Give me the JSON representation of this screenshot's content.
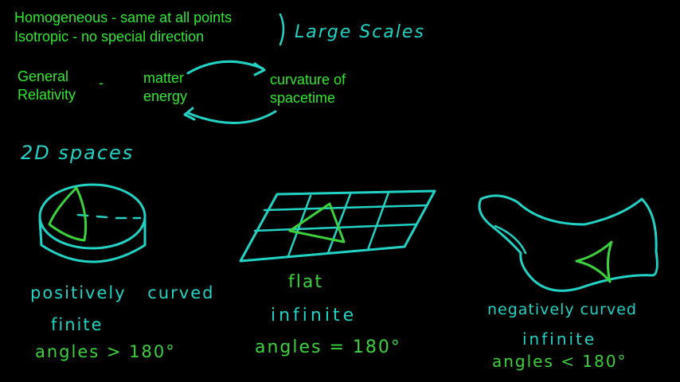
{
  "colors": {
    "background": "#000000",
    "typed_text": "#2ee82e",
    "chalk_cyan": "#22d3c5",
    "chalk_green": "#3cd23c"
  },
  "header": {
    "homogeneous": "Homogeneous - same at all points",
    "isotropic": "Isotropic - no special direction",
    "large_scales": "Large Scales"
  },
  "relativity": {
    "general": "General",
    "relativity": "Relativity",
    "dash": "-",
    "matter": "matter",
    "energy": "energy",
    "curvature_of": "curvature of",
    "spacetime": "spacetime"
  },
  "spaces_heading": "2D spaces",
  "shapes": {
    "sphere": {
      "curvature": "positively curved",
      "extent": "finite",
      "angles": "angles > 180°"
    },
    "plane": {
      "curvature": "flat",
      "extent": "infinite",
      "angles": "angles = 180°"
    },
    "saddle": {
      "curvature": "negatively curved",
      "extent": "infinite",
      "angles": "angles < 180°"
    }
  }
}
